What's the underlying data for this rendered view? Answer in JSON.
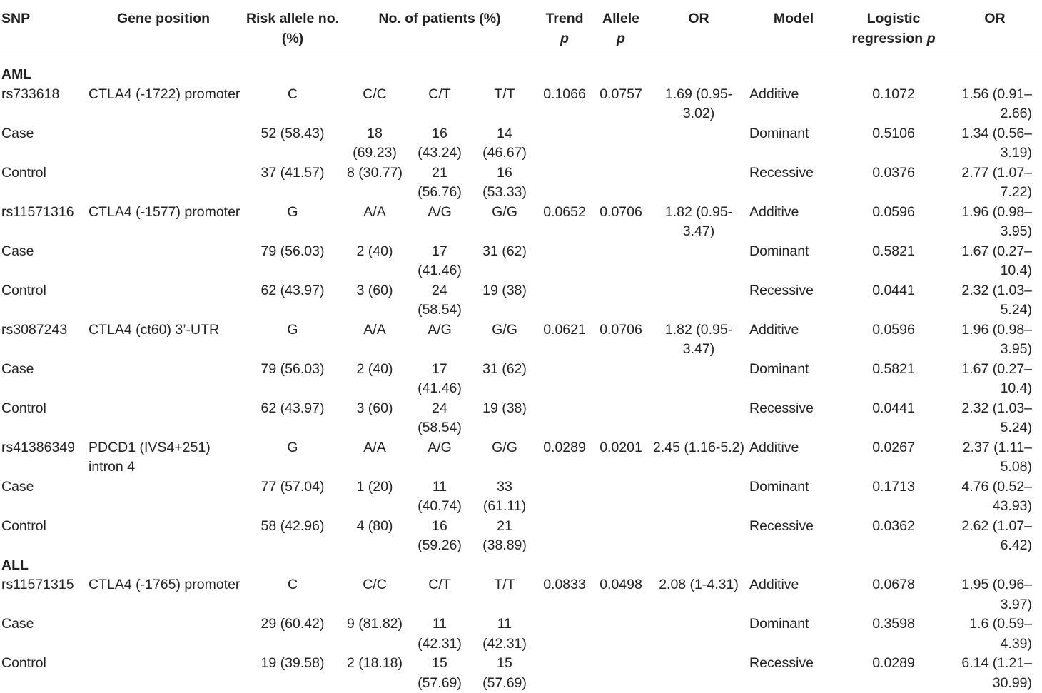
{
  "header": {
    "snp": "SNP",
    "gene_position": "Gene position",
    "risk_allele": "Risk allele no. (%)",
    "patients": "No. of patients (%)",
    "trend": "Trend",
    "trend_p": "p",
    "allele": "Allele",
    "allele_p": "p",
    "or": "OR",
    "model": "Model",
    "logistic": "Logistic regression",
    "logistic_p": "p",
    "or2": "OR"
  },
  "groups": [
    {
      "name": "AML",
      "rows": [
        {
          "snp": "rs733618",
          "gene": "CTLA4 (-1722) promoter",
          "risk": "C",
          "g1": "C/C",
          "g2": "C/T",
          "g3": "T/T",
          "trend": "0.1066",
          "allele": "0.0757",
          "or": "1.69 (0.95-3.02)",
          "model": "Additive",
          "logit": "0.1072",
          "or2": "1.56 (0.91–2.66)"
        },
        {
          "snp": "Case",
          "gene": "",
          "risk": "52 (58.43)",
          "g1": "18 (69.23)",
          "g2": "16 (43.24)",
          "g3": "14 (46.67)",
          "trend": "",
          "allele": "",
          "or": "",
          "model": "Dominant",
          "logit": "0.5106",
          "or2": "1.34 (0.56–3.19)"
        },
        {
          "snp": "Control",
          "gene": "",
          "risk": "37 (41.57)",
          "g1": "8 (30.77)",
          "g2": "21 (56.76)",
          "g3": "16 (53.33)",
          "trend": "",
          "allele": "",
          "or": "",
          "model": "Recessive",
          "logit": "0.0376",
          "or2": "2.77 (1.07–7.22)"
        },
        {
          "snp": "rs11571316",
          "gene": "CTLA4 (-1577) promoter",
          "risk": "G",
          "g1": "A/A",
          "g2": "A/G",
          "g3": "G/G",
          "trend": "0.0652",
          "allele": "0.0706",
          "or": "1.82 (0.95-3.47)",
          "model": "Additive",
          "logit": "0.0596",
          "or2": "1.96 (0.98–3.95)"
        },
        {
          "snp": "Case",
          "gene": "",
          "risk": "79 (56.03)",
          "g1": "2 (40)",
          "g2": "17 (41.46)",
          "g3": "31 (62)",
          "trend": "",
          "allele": "",
          "or": "",
          "model": "Dominant",
          "logit": "0.5821",
          "or2": "1.67 (0.27–10.4)"
        },
        {
          "snp": "Control",
          "gene": "",
          "risk": "62 (43.97)",
          "g1": "3 (60)",
          "g2": "24 (58.54)",
          "g3": "19 (38)",
          "trend": "",
          "allele": "",
          "or": "",
          "model": "Recessive",
          "logit": "0.0441",
          "or2": "2.32 (1.03–5.24)"
        },
        {
          "snp": "rs3087243",
          "gene": "CTLA4 (ct60) 3’-UTR",
          "risk": "G",
          "g1": "A/A",
          "g2": "A/G",
          "g3": "G/G",
          "trend": "0.0621",
          "allele": "0.0706",
          "or": "1.82 (0.95-3.47)",
          "model": "Additive",
          "logit": "0.0596",
          "or2": "1.96 (0.98–3.95)"
        },
        {
          "snp": "Case",
          "gene": "",
          "risk": "79 (56.03)",
          "g1": "2 (40)",
          "g2": "17 (41.46)",
          "g3": "31 (62)",
          "trend": "",
          "allele": "",
          "or": "",
          "model": "Dominant",
          "logit": "0.5821",
          "or2": "1.67 (0.27–10.4)"
        },
        {
          "snp": "Control",
          "gene": "",
          "risk": "62 (43.97)",
          "g1": "3 (60)",
          "g2": "24 (58.54)",
          "g3": "19 (38)",
          "trend": "",
          "allele": "",
          "or": "",
          "model": "Recessive",
          "logit": "0.0441",
          "or2": "2.32 (1.03–5.24)"
        },
        {
          "snp": "rs41386349",
          "gene": "PDCD1 (IVS4+251) intron 4",
          "risk": "G",
          "g1": "A/A",
          "g2": "A/G",
          "g3": "G/G",
          "trend": "0.0289",
          "allele": "0.0201",
          "or": "2.45 (1.16-5.2)",
          "model": "Additive",
          "logit": "0.0267",
          "or2": "2.37 (1.11–5.08)"
        },
        {
          "snp": "Case",
          "gene": "",
          "risk": "77 (57.04)",
          "g1": "1 (20)",
          "g2": "11 (40.74)",
          "g3": "33 (61.11)",
          "trend": "",
          "allele": "",
          "or": "",
          "model": "Dominant",
          "logit": "0.1713",
          "or2": "4.76 (0.52–43.93)"
        },
        {
          "snp": "Control",
          "gene": "",
          "risk": "58 (42.96)",
          "g1": "4 (80)",
          "g2": "16 (59.26)",
          "g3": "21 (38.89)",
          "trend": "",
          "allele": "",
          "or": "",
          "model": "Recessive",
          "logit": "0.0362",
          "or2": "2.62 (1.07–6.42)"
        }
      ]
    },
    {
      "name": "ALL",
      "rows": [
        {
          "snp": "rs11571315",
          "gene": "CTLA4 (-1765) promoter",
          "risk": "C",
          "g1": "C/C",
          "g2": "C/T",
          "g3": "T/T",
          "trend": "0.0833",
          "allele": "0.0498",
          "or": "2.08 (1-4.31)",
          "model": "Additive",
          "logit": "0.0678",
          "or2": "1.95 (0.96–3.97)"
        },
        {
          "snp": "Case",
          "gene": "",
          "risk": "29 (60.42)",
          "g1": "9 (81.82)",
          "g2": "11 (42.31)",
          "g3": "11 (42.31)",
          "trend": "",
          "allele": "",
          "or": "",
          "model": "Dominant",
          "logit": "0.3598",
          "or2": "1.6 (0.59–4.39)"
        },
        {
          "snp": "Control",
          "gene": "",
          "risk": "19 (39.58)",
          "g1": "2 (18.18)",
          "g2": "15 (57.69)",
          "g3": "15 (57.69)",
          "trend": "",
          "allele": "",
          "or": "",
          "model": "Recessive",
          "logit": "0.0289",
          "or2": "6.14 (1.21–30.99)"
        }
      ]
    }
  ]
}
